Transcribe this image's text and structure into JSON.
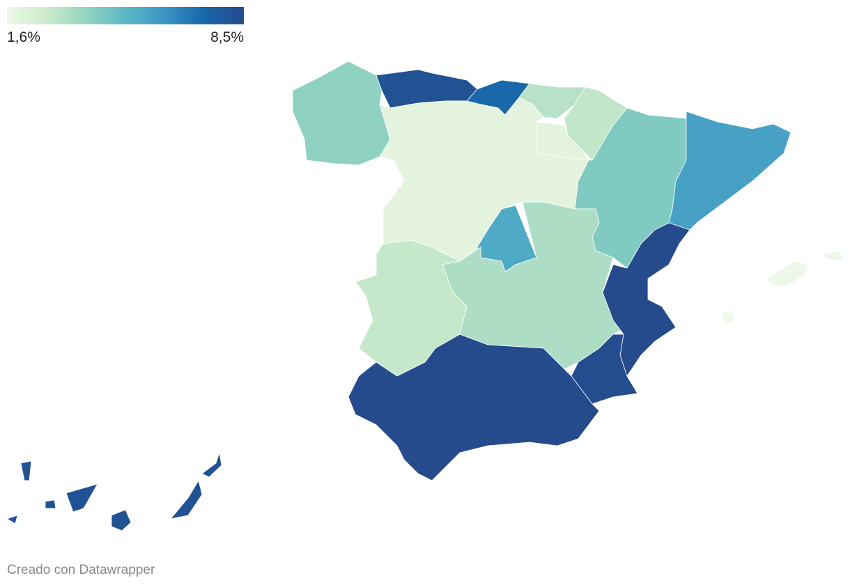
{
  "map": {
    "legend": {
      "min": {
        "value": 1.6,
        "label": "1,6%"
      },
      "max": {
        "value": 8.5,
        "label": "8,5%"
      },
      "colors": [
        "#eef8e8",
        "#cdebcc",
        "#94d4c0",
        "#5cb8c6",
        "#3b95c4",
        "#1766a9",
        "#254b8c"
      ]
    },
    "values": [
      4.0,
      8.2,
      7.3,
      3.2,
      3.0,
      2.0,
      2.0,
      4.3,
      5.8,
      5.5,
      3.4,
      2.9,
      8.5,
      8.4,
      8.5,
      1.6,
      8.2
    ],
    "footer": "Creado con Datawrapper"
  }
}
